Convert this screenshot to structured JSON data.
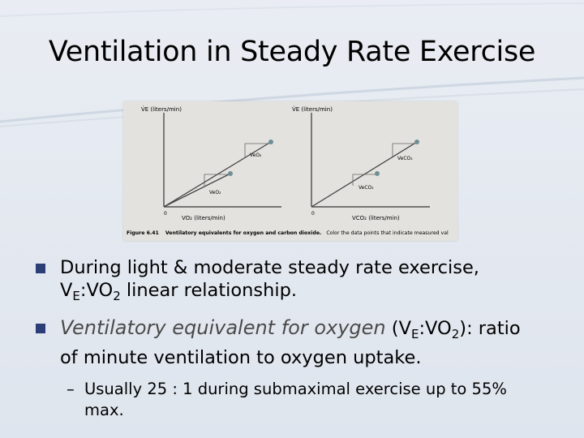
{
  "slide": {
    "title": "Ventilation in Steady Rate Exercise",
    "bullets": [
      {
        "line1": "During light & moderate steady rate exercise,",
        "line2_pre": "V",
        "line2_sub1": "E",
        "line2_mid": ":VO",
        "line2_sub2": "2",
        "line2_post": " linear relationship."
      },
      {
        "italic": "Ventilatory equivalent for oxygen",
        "paren_pre": " (V",
        "paren_sub1": "E",
        "paren_mid": ":VO",
        "paren_sub2": "2",
        "paren_post": "): ratio",
        "line2": "of minute ventilation to oxygen uptake."
      }
    ],
    "sub_bullet": {
      "dash": "–",
      "line1": "Usually 25 : 1 during submaximal exercise up to 55%",
      "line2": "max."
    }
  },
  "figure": {
    "left_chart": {
      "ylabel": "V̇E (liters/min)",
      "xlabel": "VO₂ (liters/min)",
      "label_upper": "VeO₂",
      "label_lower": "VeO₂",
      "origin": "0"
    },
    "right_chart": {
      "ylabel": "V̇E (liters/min)",
      "xlabel": "VCO₂ (liters/min)",
      "label_upper": "VeCO₂",
      "label_lower": "VeCO₂",
      "origin": "0"
    },
    "caption_bold": "Figure 6.41",
    "caption_title": "Ventilatory equivalents for oxygen and carbon dioxide.",
    "caption_rest": "Color the data points that indicate measured val"
  },
  "colors": {
    "bullet": "#2c3e78",
    "point": "#6f8f96",
    "swoosh": "#c9d2de"
  }
}
